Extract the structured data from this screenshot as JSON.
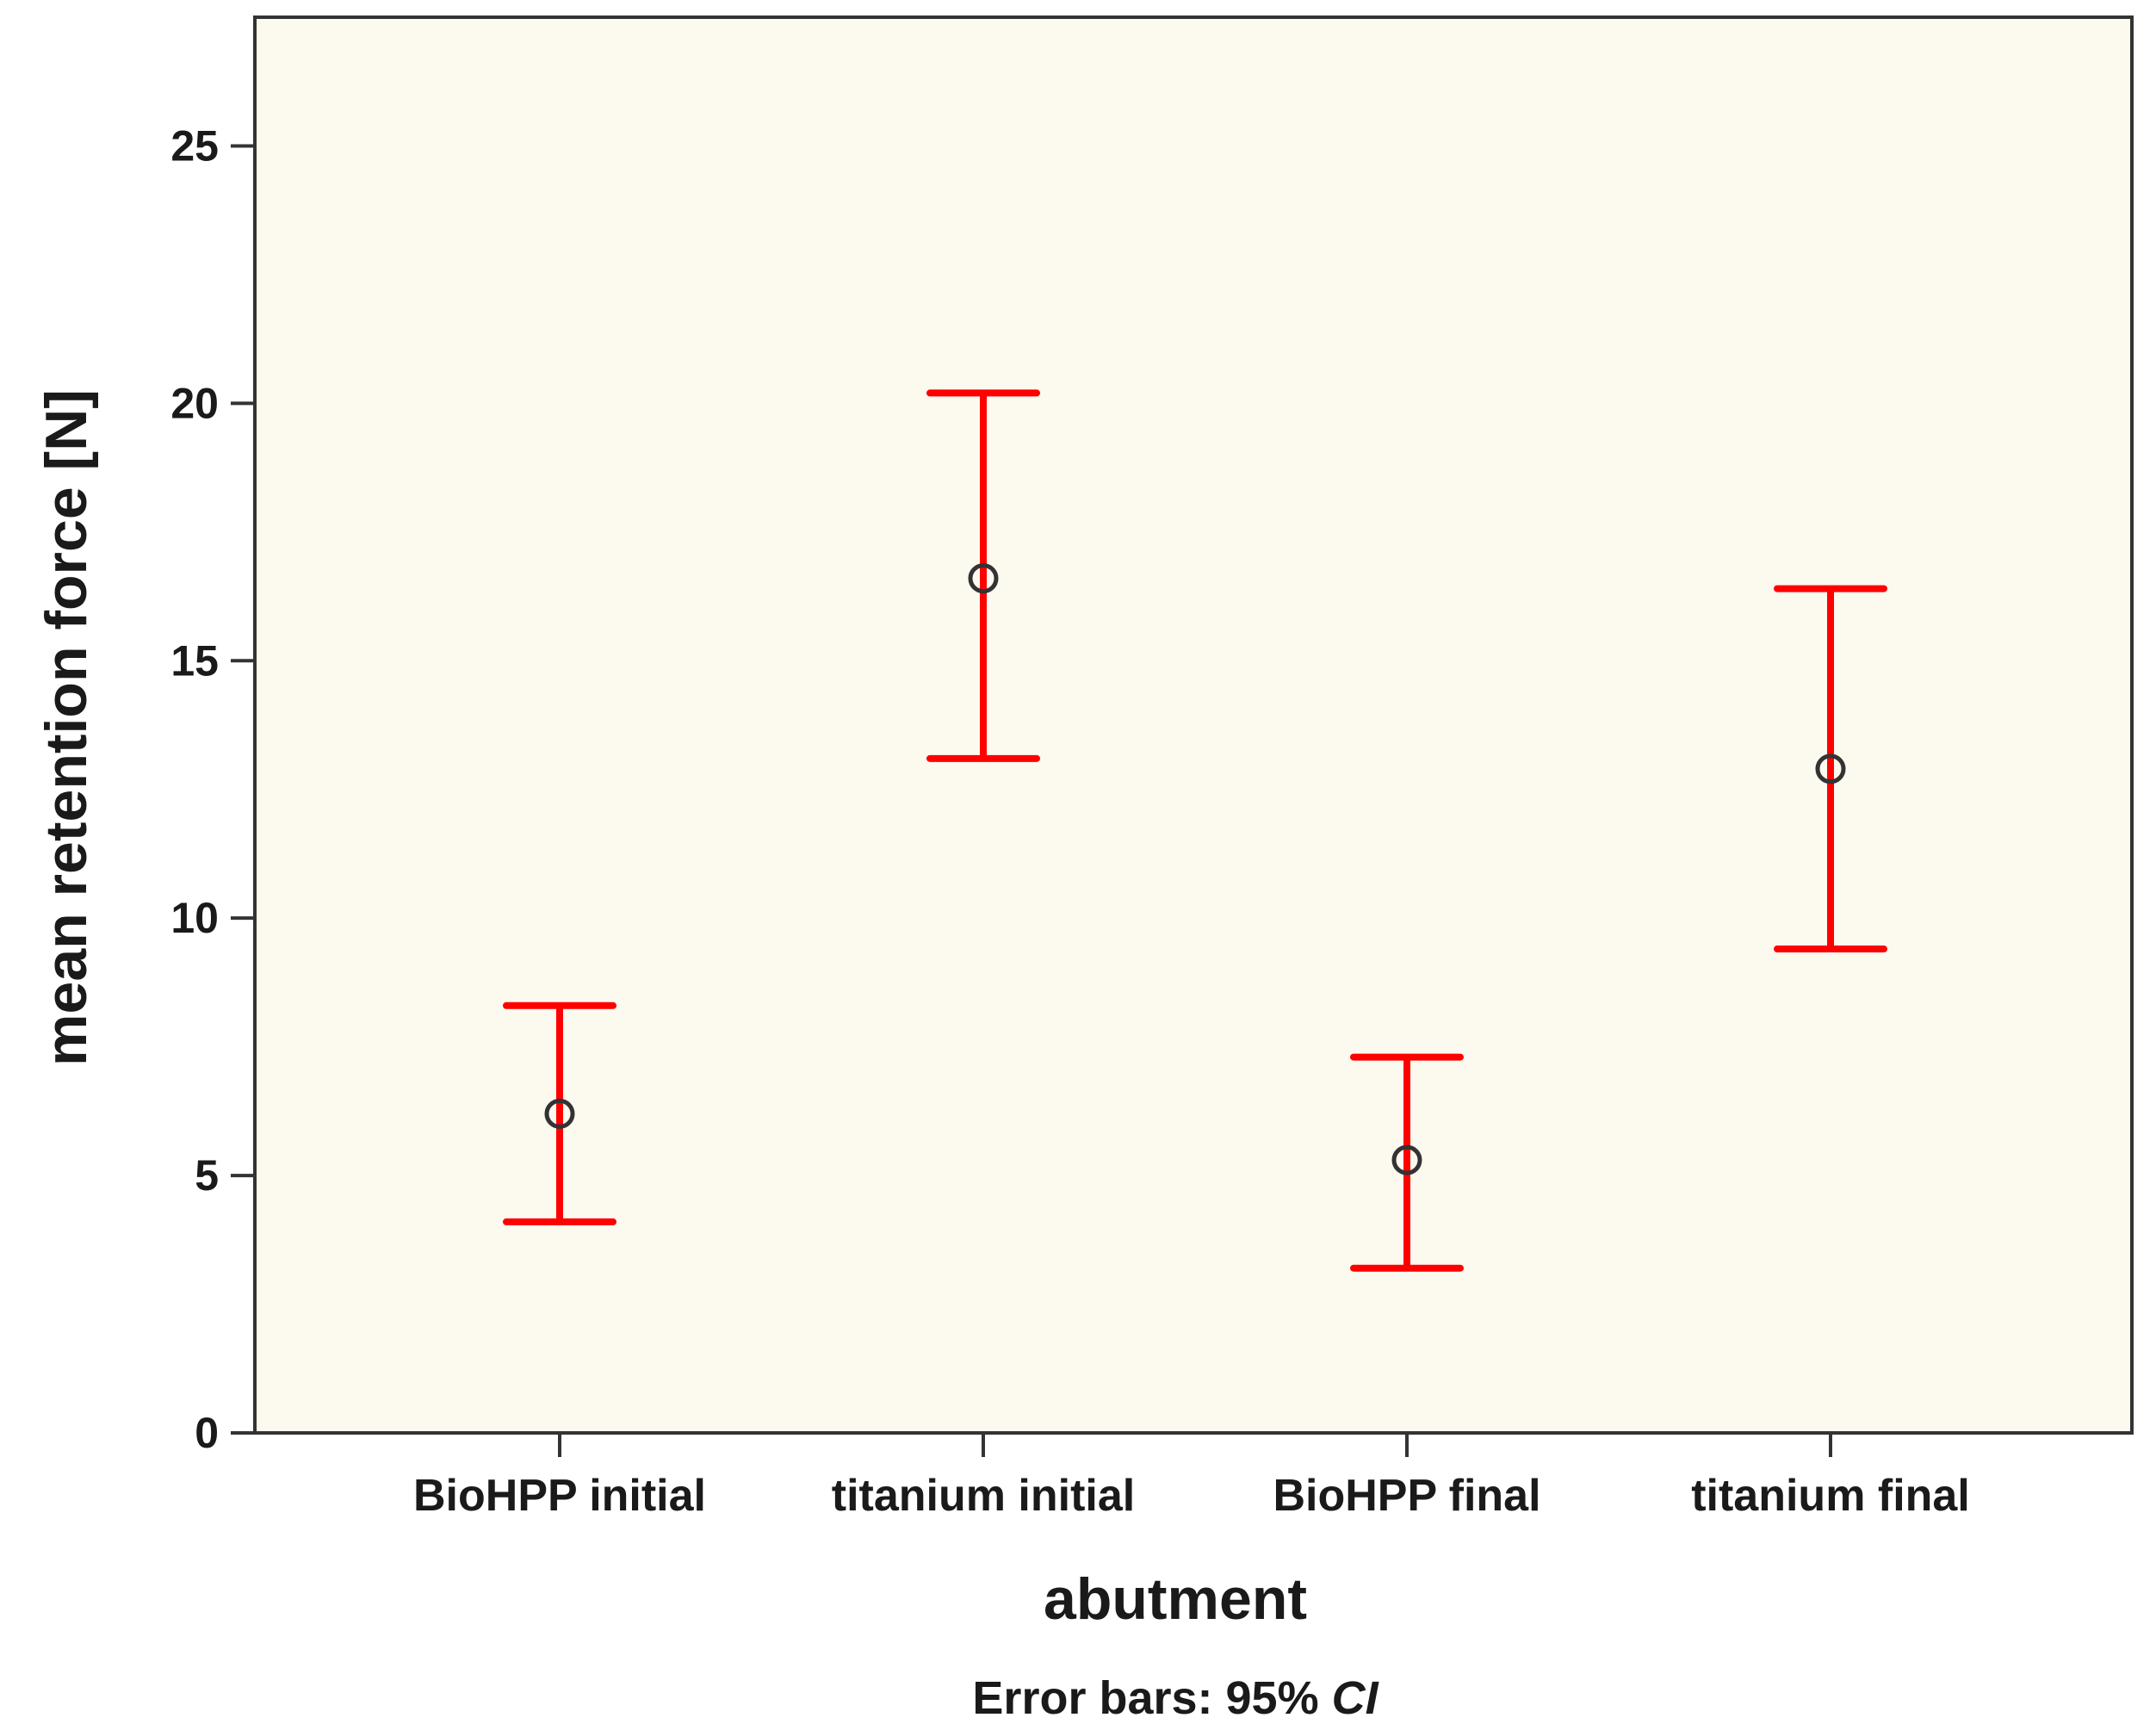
{
  "chart_data": {
    "type": "errorbar",
    "title": "",
    "xlabel": "abutment",
    "ylabel": "mean retention force [N]",
    "ylim": [
      0,
      27.5
    ],
    "yticks": [
      0,
      5,
      10,
      15,
      20,
      25
    ],
    "grid": false,
    "categories": [
      "BioHPP initial",
      "titanium initial",
      "BioHPP final",
      "titanium final"
    ],
    "means": [
      6.2,
      16.6,
      5.3,
      12.9
    ],
    "ci_lower": [
      4.1,
      13.1,
      3.2,
      9.4
    ],
    "ci_upper": [
      8.3,
      20.2,
      7.3,
      16.4
    ],
    "footnote": {
      "prefix": "Error bars: 95% ",
      "emphasis": "CI"
    },
    "colors": {
      "plot_background": "#fcf9ef",
      "error_bar": "#ff0000",
      "marker": "#333333",
      "axis": "#333333"
    }
  }
}
